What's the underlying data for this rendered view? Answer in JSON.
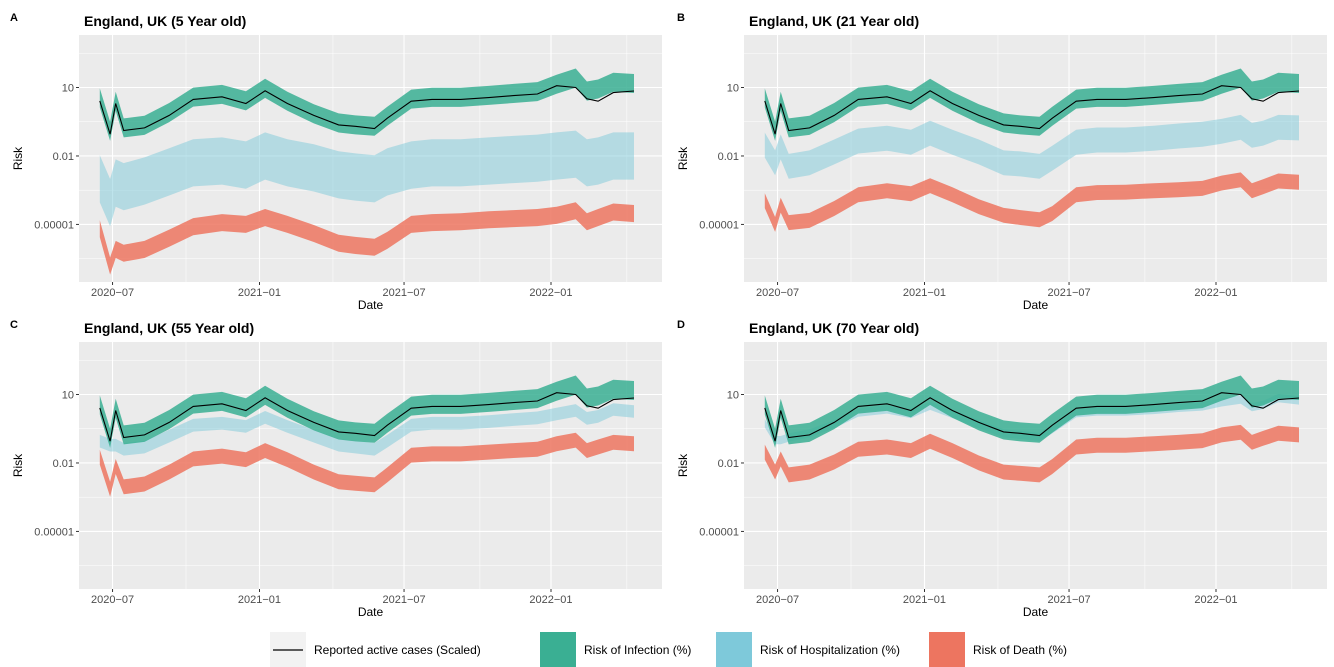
{
  "legend": [
    {
      "key": "cases",
      "label": "Reported active cases (Scaled)",
      "color": "#000000",
      "type": "line"
    },
    {
      "key": "inf",
      "label": "Risk of Infection (%)",
      "color": "#3aaf93",
      "type": "fill"
    },
    {
      "key": "hosp",
      "label": "Risk of Hospitalization (%)",
      "color": "#7ec9da",
      "type": "fill"
    },
    {
      "key": "death",
      "label": "Risk of Death (%)",
      "color": "#ed7560",
      "type": "fill"
    }
  ],
  "chart_data": [
    {
      "type": "line",
      "tag": "A",
      "title": "England, UK (5 Year old)",
      "xlabel": "Date",
      "ylabel": "Risk",
      "y_scale": "log10",
      "ylim": [
        3e-08,
        2000
      ],
      "yticks": [
        {
          "value": 10,
          "label": "10"
        },
        {
          "value": 0.01,
          "label": "0.01"
        },
        {
          "value": 1e-05,
          "label": "0.00001"
        }
      ],
      "xlim": [
        "2020-05-20",
        "2022-05-20"
      ],
      "xticks": [
        {
          "value": "2020-07-01",
          "label": "2020−07"
        },
        {
          "value": "2021-01-01",
          "label": "2021−01"
        },
        {
          "value": "2021-07-01",
          "label": "2021−07"
        },
        {
          "value": "2022-01-01",
          "label": "2022−01"
        }
      ],
      "dates": [
        "2020-06-15",
        "2020-06-28",
        "2020-07-05",
        "2020-07-15",
        "2020-08-10",
        "2020-09-10",
        "2020-10-10",
        "2020-11-15",
        "2020-12-15",
        "2021-01-08",
        "2021-02-05",
        "2021-03-10",
        "2021-04-10",
        "2021-05-01",
        "2021-05-25",
        "2021-06-10",
        "2021-07-10",
        "2021-08-05",
        "2021-09-10",
        "2021-10-15",
        "2021-11-15",
        "2021-12-15",
        "2022-01-08",
        "2022-02-01",
        "2022-02-15",
        "2022-03-01",
        "2022-03-20",
        "2022-04-15"
      ],
      "series": [
        {
          "key": "cases",
          "center": [
            2.6,
            0.09,
            2.0,
            0.13,
            0.17,
            0.6,
            3.0,
            3.9,
            2.0,
            7.2,
            2.0,
            0.6,
            0.23,
            0.2,
            0.16,
            0.45,
            2.5,
            3.0,
            3.0,
            3.6,
            4.4,
            5.2,
            12,
            10,
            3.2,
            2.5,
            6.0,
            7.0
          ]
        },
        {
          "key": "inf",
          "center": [
            3.5,
            0.12,
            2.5,
            0.17,
            0.22,
            0.8,
            3.8,
            5.0,
            2.6,
            9.2,
            2.5,
            0.7,
            0.28,
            0.23,
            0.2,
            0.55,
            3.1,
            3.7,
            3.7,
            4.5,
            5.5,
            6.6,
            14,
            26,
            7.0,
            8.6,
            17,
            15
          ],
          "halfwidth": 1.5
        },
        {
          "key": "hosp",
          "center": [
            0.001,
            9e-05,
            0.00065,
            0.00045,
            0.0008,
            0.002,
            0.005,
            0.006,
            0.004,
            0.01,
            0.005,
            0.003,
            0.0015,
            0.0012,
            0.001,
            0.002,
            0.004,
            0.005,
            0.005,
            0.006,
            0.007,
            0.008,
            0.01,
            0.012,
            0.005,
            0.006,
            0.01,
            0.01
          ],
          "halfwidth": 8
        },
        {
          "key": "death",
          "center": [
            6.5e-06,
            1.5e-07,
            8e-07,
            5.5e-07,
            8e-07,
            2.5e-06,
            8e-06,
            1.2e-05,
            1e-05,
            2e-05,
            1e-05,
            4e-06,
            1.5e-06,
            1.2e-06,
            1e-06,
            2e-06,
            1e-05,
            1.2e-05,
            1.3e-05,
            1.6e-05,
            1.8e-05,
            2e-05,
            2.5e-05,
            4e-05,
            1.3e-05,
            2e-05,
            3.5e-05,
            3e-05
          ],
          "halfwidth": 1.5
        }
      ]
    },
    {
      "type": "line",
      "tag": "B",
      "title": "England, UK (21 Year old)",
      "xlabel": "Date",
      "ylabel": "Risk",
      "y_scale": "log10",
      "ylim": [
        3e-08,
        2000
      ],
      "yticks": [
        {
          "value": 10,
          "label": "10"
        },
        {
          "value": 0.01,
          "label": "0.01"
        },
        {
          "value": 1e-05,
          "label": "0.00001"
        }
      ],
      "xlim": [
        "2020-05-20",
        "2022-05-20"
      ],
      "xticks": [
        {
          "value": "2020-07-01",
          "label": "2020−07"
        },
        {
          "value": "2021-01-01",
          "label": "2021−01"
        },
        {
          "value": "2021-07-01",
          "label": "2021−07"
        },
        {
          "value": "2022-01-01",
          "label": "2022−01"
        }
      ],
      "dates": [
        "2020-06-15",
        "2020-06-28",
        "2020-07-05",
        "2020-07-15",
        "2020-08-10",
        "2020-09-10",
        "2020-10-10",
        "2020-11-15",
        "2020-12-15",
        "2021-01-08",
        "2021-02-05",
        "2021-03-10",
        "2021-04-10",
        "2021-05-01",
        "2021-05-25",
        "2021-06-10",
        "2021-07-10",
        "2021-08-05",
        "2021-09-10",
        "2021-10-15",
        "2021-11-15",
        "2021-12-15",
        "2022-01-08",
        "2022-02-01",
        "2022-02-15",
        "2022-03-01",
        "2022-03-20",
        "2022-04-15"
      ],
      "series": [
        {
          "key": "cases",
          "center": [
            2.6,
            0.09,
            2.0,
            0.13,
            0.17,
            0.6,
            3.0,
            3.9,
            2.0,
            7.2,
            2.0,
            0.6,
            0.23,
            0.2,
            0.16,
            0.45,
            2.5,
            3.0,
            3.0,
            3.6,
            4.4,
            5.2,
            12,
            10,
            3.2,
            2.5,
            6.0,
            7.0
          ]
        },
        {
          "key": "inf",
          "center": [
            3.5,
            0.12,
            2.5,
            0.17,
            0.22,
            0.8,
            3.8,
            5.0,
            2.6,
            9.2,
            2.5,
            0.7,
            0.28,
            0.23,
            0.2,
            0.55,
            3.1,
            3.7,
            3.7,
            4.5,
            5.5,
            6.6,
            14,
            26,
            7.0,
            8.6,
            17,
            15
          ],
          "halfwidth": 1.5
        },
        {
          "key": "hosp",
          "center": [
            0.03,
            0.005,
            0.025,
            0.0035,
            0.005,
            0.015,
            0.045,
            0.06,
            0.04,
            0.1,
            0.04,
            0.015,
            0.005,
            0.0045,
            0.0035,
            0.008,
            0.04,
            0.05,
            0.05,
            0.06,
            0.075,
            0.09,
            0.12,
            0.18,
            0.08,
            0.1,
            0.18,
            0.17
          ],
          "halfwidth": 2.6
        },
        {
          "key": "death",
          "center": [
            0.00011,
            1e-05,
            7e-05,
            1.2e-05,
            1.5e-05,
            5e-05,
            0.0002,
            0.0003,
            0.00022,
            0.0005,
            0.0002,
            6e-05,
            2.5e-05,
            2e-05,
            1.6e-05,
            3e-05,
            0.0002,
            0.00025,
            0.00026,
            0.0003,
            0.00033,
            0.00038,
            0.00065,
            0.0009,
            0.0003,
            0.00045,
            0.0008,
            0.0007
          ],
          "halfwidth": 1.35
        }
      ]
    },
    {
      "type": "line",
      "tag": "C",
      "title": "England, UK (55 Year old)",
      "xlabel": "Date",
      "ylabel": "Risk",
      "y_scale": "log10",
      "ylim": [
        3e-08,
        2000
      ],
      "yticks": [
        {
          "value": 10,
          "label": "10"
        },
        {
          "value": 0.01,
          "label": "0.01"
        },
        {
          "value": 1e-05,
          "label": "0.00001"
        }
      ],
      "xlim": [
        "2020-05-20",
        "2022-05-20"
      ],
      "xticks": [
        {
          "value": "2020-07-01",
          "label": "2020−07"
        },
        {
          "value": "2021-01-01",
          "label": "2021−01"
        },
        {
          "value": "2021-07-01",
          "label": "2021−07"
        },
        {
          "value": "2022-01-01",
          "label": "2022−01"
        }
      ],
      "dates": [
        "2020-06-15",
        "2020-06-28",
        "2020-07-05",
        "2020-07-15",
        "2020-08-10",
        "2020-09-10",
        "2020-10-10",
        "2020-11-15",
        "2020-12-15",
        "2021-01-08",
        "2021-02-05",
        "2021-03-10",
        "2021-04-10",
        "2021-05-01",
        "2021-05-25",
        "2021-06-10",
        "2021-07-10",
        "2021-08-05",
        "2021-09-10",
        "2021-10-15",
        "2021-11-15",
        "2021-12-15",
        "2022-01-08",
        "2022-02-01",
        "2022-02-15",
        "2022-03-01",
        "2022-03-20",
        "2022-04-15"
      ],
      "series": [
        {
          "key": "cases",
          "center": [
            2.6,
            0.09,
            2.0,
            0.13,
            0.17,
            0.6,
            3.0,
            3.9,
            2.0,
            7.2,
            2.0,
            0.6,
            0.23,
            0.2,
            0.16,
            0.45,
            2.5,
            3.0,
            3.0,
            3.6,
            4.4,
            5.2,
            12,
            10,
            3.2,
            2.5,
            6.0,
            7.0
          ]
        },
        {
          "key": "inf",
          "center": [
            3.5,
            0.12,
            2.5,
            0.17,
            0.22,
            0.8,
            3.8,
            5.0,
            2.6,
            9.2,
            2.5,
            0.7,
            0.28,
            0.23,
            0.2,
            0.55,
            3.1,
            3.7,
            3.7,
            4.5,
            5.5,
            6.6,
            14,
            26,
            7.0,
            8.6,
            17,
            15
          ],
          "halfwidth": 1.5
        },
        {
          "key": "hosp",
          "center": [
            0.09,
            0.06,
            0.06,
            0.04,
            0.05,
            0.15,
            0.45,
            0.55,
            0.4,
            1.0,
            0.4,
            0.15,
            0.06,
            0.05,
            0.04,
            0.09,
            0.45,
            0.55,
            0.55,
            0.65,
            0.8,
            0.95,
            1.4,
            2.0,
            0.9,
            1.1,
            2.2,
            1.8
          ],
          "halfwidth": 1.4
        },
        {
          "key": "death",
          "center": [
            0.018,
            0.0007,
            0.007,
            0.0009,
            0.0012,
            0.004,
            0.015,
            0.02,
            0.014,
            0.035,
            0.014,
            0.004,
            0.0015,
            0.0013,
            0.0011,
            0.003,
            0.022,
            0.025,
            0.025,
            0.03,
            0.035,
            0.04,
            0.07,
            0.1,
            0.035,
            0.05,
            0.08,
            0.07
          ],
          "halfwidth": 1.35
        }
      ]
    },
    {
      "type": "line",
      "tag": "D",
      "title": "England, UK (70 Year old)",
      "xlabel": "Date",
      "ylabel": "Risk",
      "y_scale": "log10",
      "ylim": [
        3e-08,
        2000
      ],
      "yticks": [
        {
          "value": 10,
          "label": "10"
        },
        {
          "value": 0.01,
          "label": "0.01"
        },
        {
          "value": 1e-05,
          "label": "0.00001"
        }
      ],
      "xlim": [
        "2020-05-20",
        "2022-05-20"
      ],
      "xticks": [
        {
          "value": "2020-07-01",
          "label": "2020−07"
        },
        {
          "value": "2021-01-01",
          "label": "2021−01"
        },
        {
          "value": "2021-07-01",
          "label": "2021−07"
        },
        {
          "value": "2022-01-01",
          "label": "2022−01"
        }
      ],
      "dates": [
        "2020-06-15",
        "2020-06-28",
        "2020-07-05",
        "2020-07-15",
        "2020-08-10",
        "2020-09-10",
        "2020-10-10",
        "2020-11-15",
        "2020-12-15",
        "2021-01-08",
        "2021-02-05",
        "2021-03-10",
        "2021-04-10",
        "2021-05-01",
        "2021-05-25",
        "2021-06-10",
        "2021-07-10",
        "2021-08-05",
        "2021-09-10",
        "2021-10-15",
        "2021-11-15",
        "2021-12-15",
        "2022-01-08",
        "2022-02-01",
        "2022-02-15",
        "2022-03-01",
        "2022-03-20",
        "2022-04-15"
      ],
      "series": [
        {
          "key": "cases",
          "center": [
            2.6,
            0.09,
            2.0,
            0.13,
            0.17,
            0.6,
            3.0,
            3.9,
            2.0,
            7.2,
            2.0,
            0.6,
            0.23,
            0.2,
            0.16,
            0.45,
            2.5,
            3.0,
            3.0,
            3.6,
            4.4,
            5.2,
            12,
            10,
            3.2,
            2.5,
            6.0,
            7.0
          ]
        },
        {
          "key": "inf",
          "center": [
            3.5,
            0.12,
            2.5,
            0.17,
            0.22,
            0.8,
            3.8,
            5.0,
            2.6,
            9.2,
            2.5,
            0.7,
            0.28,
            0.23,
            0.2,
            0.55,
            3.1,
            3.7,
            3.7,
            4.5,
            5.5,
            6.6,
            14,
            26,
            7.0,
            8.6,
            17,
            15
          ],
          "halfwidth": 1.5
        },
        {
          "key": "hosp",
          "center": [
            0.55,
            0.1,
            0.1,
            0.13,
            0.2,
            0.5,
            1.6,
            2.2,
            1.4,
            3.2,
            1.4,
            0.5,
            0.2,
            0.17,
            0.14,
            0.3,
            1.5,
            1.8,
            1.8,
            2.1,
            2.6,
            3.0,
            4.5,
            6.0,
            2.8,
            3.5,
            7.0,
            5.5
          ],
          "halfwidth": 1.12
        },
        {
          "key": "death",
          "center": [
            0.03,
            0.004,
            0.015,
            0.003,
            0.004,
            0.011,
            0.04,
            0.05,
            0.035,
            0.09,
            0.035,
            0.01,
            0.004,
            0.0035,
            0.003,
            0.007,
            0.05,
            0.06,
            0.06,
            0.07,
            0.08,
            0.095,
            0.17,
            0.22,
            0.08,
            0.12,
            0.2,
            0.17
          ],
          "halfwidth": 1.35
        }
      ]
    }
  ]
}
